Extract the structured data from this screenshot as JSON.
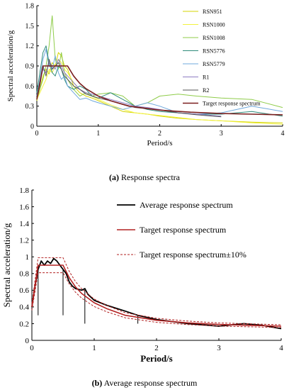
{
  "panels": [
    {
      "caption_tag": "(a)",
      "caption_text": " Response spectra",
      "chart_data": {
        "type": "line",
        "xlabel": "Period/s",
        "ylabel": "Spectral acceleration/g",
        "xlim": [
          0,
          4
        ],
        "ylim": [
          0,
          1.8
        ],
        "xticks": [
          0,
          1,
          2,
          3,
          4
        ],
        "yticks": [
          0,
          0.3,
          0.6,
          0.9,
          1.2,
          1.5,
          1.8
        ],
        "grid": false,
        "legend_position": "top-right",
        "series": [
          {
            "name": "RSN951",
            "color": "#d4d400",
            "x": [
              0,
              0.05,
              0.1,
              0.15,
              0.2,
              0.25,
              0.3,
              0.35,
              0.4,
              0.45,
              0.5,
              0.6,
              0.7,
              0.8,
              0.9,
              1,
              1.2,
              1.4,
              1.6,
              1.8,
              2,
              2.3,
              2.6,
              3,
              3.5,
              4
            ],
            "y": [
              0.38,
              0.55,
              0.75,
              0.85,
              0.78,
              0.95,
              0.9,
              1.1,
              1.05,
              0.9,
              0.85,
              0.6,
              0.5,
              0.45,
              0.42,
              0.38,
              0.3,
              0.22,
              0.2,
              0.18,
              0.15,
              0.12,
              0.1,
              0.08,
              0.06,
              0.05
            ]
          },
          {
            "name": "RSN1000",
            "color": "#f2f23c",
            "x": [
              0,
              0.05,
              0.1,
              0.15,
              0.2,
              0.25,
              0.3,
              0.35,
              0.4,
              0.45,
              0.5,
              0.6,
              0.7,
              0.8,
              0.9,
              1,
              1.2,
              1.4,
              1.6,
              1.8,
              2,
              2.3,
              2.6,
              3,
              3.5,
              4
            ],
            "y": [
              0.4,
              0.5,
              0.6,
              0.7,
              0.85,
              0.8,
              0.9,
              1.0,
              0.95,
              0.85,
              0.8,
              0.65,
              0.55,
              0.5,
              0.45,
              0.4,
              0.32,
              0.25,
              0.2,
              0.18,
              0.16,
              0.13,
              0.1,
              0.08,
              0.05,
              0.03
            ]
          },
          {
            "name": "RSN1008",
            "color": "#8fcc4a",
            "x": [
              0,
              0.05,
              0.1,
              0.15,
              0.2,
              0.25,
              0.3,
              0.35,
              0.4,
              0.45,
              0.5,
              0.6,
              0.7,
              0.8,
              0.9,
              1,
              1.2,
              1.4,
              1.6,
              1.8,
              2,
              2.3,
              2.6,
              3,
              3.5,
              4
            ],
            "y": [
              0.4,
              0.55,
              0.7,
              0.9,
              1.2,
              1.65,
              1.0,
              0.85,
              1.1,
              0.8,
              0.7,
              0.55,
              0.45,
              0.5,
              0.45,
              0.48,
              0.5,
              0.45,
              0.3,
              0.35,
              0.45,
              0.48,
              0.45,
              0.42,
              0.4,
              0.28
            ]
          },
          {
            "name": "RSN5776",
            "color": "#2e8b7a",
            "x": [
              0,
              0.05,
              0.1,
              0.15,
              0.2,
              0.25,
              0.3,
              0.35,
              0.4,
              0.45,
              0.5,
              0.6,
              0.7,
              0.8,
              0.9,
              1,
              1.2,
              1.4,
              1.6,
              1.8,
              2,
              2.3,
              2.6,
              3,
              3.5,
              4
            ],
            "y": [
              0.5,
              0.8,
              1.1,
              1.2,
              0.95,
              0.8,
              0.75,
              0.9,
              0.85,
              0.7,
              0.6,
              0.55,
              0.6,
              0.55,
              0.45,
              0.42,
              0.5,
              0.4,
              0.3,
              0.25,
              0.22,
              0.2,
              0.18,
              0.18,
              0.22,
              0.15
            ]
          },
          {
            "name": "RSN5779",
            "color": "#6fa8dc",
            "x": [
              0,
              0.05,
              0.1,
              0.15,
              0.2,
              0.25,
              0.3,
              0.35,
              0.4,
              0.45,
              0.5,
              0.6,
              0.7,
              0.8,
              0.9,
              1,
              1.2,
              1.4,
              1.6,
              1.8,
              2,
              2.3,
              2.6,
              3,
              3.5,
              4
            ],
            "y": [
              0.45,
              0.7,
              1.0,
              1.15,
              0.9,
              0.85,
              1.05,
              0.8,
              0.7,
              0.75,
              0.6,
              0.5,
              0.4,
              0.42,
              0.38,
              0.35,
              0.3,
              0.25,
              0.3,
              0.35,
              0.3,
              0.2,
              0.18,
              0.2,
              0.3,
              0.22
            ]
          },
          {
            "name": "R1",
            "color": "#8e7cc3",
            "x": [
              0,
              0.05,
              0.1,
              0.15,
              0.2,
              0.25,
              0.3,
              0.35,
              0.4,
              0.45,
              0.5,
              0.6,
              0.7,
              0.8,
              0.9,
              1,
              1.2,
              1.4,
              1.6,
              1.8,
              2,
              2.3,
              2.6,
              3
            ],
            "y": [
              0.4,
              0.65,
              0.85,
              0.8,
              0.95,
              0.9,
              0.85,
              1.0,
              0.9,
              0.8,
              0.75,
              0.65,
              0.55,
              0.5,
              0.48,
              0.45,
              0.4,
              0.35,
              0.3,
              0.28,
              0.25,
              0.2,
              0.18,
              0.15
            ]
          },
          {
            "name": "R2",
            "color": "#555555",
            "x": [
              0,
              0.05,
              0.1,
              0.15,
              0.2,
              0.25,
              0.3,
              0.35,
              0.4,
              0.45,
              0.5,
              0.6,
              0.7,
              0.8,
              0.9,
              1,
              1.2,
              1.4,
              1.6,
              1.8,
              2,
              2.3,
              2.6,
              3
            ],
            "y": [
              0.42,
              0.6,
              0.9,
              0.75,
              1.0,
              0.85,
              0.9,
              0.95,
              0.85,
              0.75,
              0.7,
              0.6,
              0.55,
              0.48,
              0.45,
              0.42,
              0.38,
              0.33,
              0.28,
              0.26,
              0.24,
              0.2,
              0.17,
              0.14
            ]
          },
          {
            "name": "Target response spectrum",
            "color": "#7b1f1f",
            "x": [
              0,
              0.1,
              0.2,
              0.3,
              0.4,
              0.5,
              0.6,
              0.7,
              0.8,
              1,
              1.2,
              1.5,
              2,
              2.5,
              3,
              3.5,
              4
            ],
            "y": [
              0.4,
              0.9,
              0.9,
              0.9,
              0.9,
              0.9,
              0.75,
              0.64,
              0.56,
              0.45,
              0.38,
              0.3,
              0.24,
              0.21,
              0.19,
              0.18,
              0.17
            ]
          }
        ]
      }
    },
    {
      "caption_tag": "(b)",
      "caption_text": " Average response spectrum",
      "chart_data": {
        "type": "line",
        "xlabel": "Period/s",
        "ylabel": "Spectral acceleration/g",
        "xlim": [
          0,
          4
        ],
        "ylim": [
          0,
          1.8
        ],
        "xticks": [
          0,
          1,
          2,
          3,
          4
        ],
        "yticks": [
          0,
          0.2,
          0.4,
          0.6,
          0.8,
          1,
          1.2,
          1.4,
          1.6,
          1.8
        ],
        "grid": false,
        "legend_position": "top-right",
        "series": [
          {
            "name": "Average response spectrum",
            "color": "#000000",
            "dash": "",
            "x": [
              0,
              0.05,
              0.1,
              0.15,
              0.2,
              0.25,
              0.3,
              0.35,
              0.4,
              0.45,
              0.5,
              0.55,
              0.6,
              0.65,
              0.7,
              0.8,
              0.85,
              0.9,
              1,
              1.2,
              1.5,
              1.7,
              2,
              2.5,
              3,
              3.4,
              3.7,
              4
            ],
            "y": [
              0.4,
              0.65,
              0.85,
              0.95,
              0.9,
              0.95,
              0.92,
              0.98,
              0.95,
              0.9,
              0.85,
              0.8,
              0.7,
              0.65,
              0.62,
              0.6,
              0.62,
              0.55,
              0.48,
              0.42,
              0.35,
              0.3,
              0.25,
              0.2,
              0.17,
              0.2,
              0.18,
              0.14
            ]
          },
          {
            "name": "Target response spectrum",
            "color": "#b22222",
            "dash": "",
            "x": [
              0,
              0.1,
              0.2,
              0.3,
              0.4,
              0.5,
              0.6,
              0.7,
              0.8,
              1,
              1.2,
              1.5,
              2,
              2.5,
              3,
              3.5,
              4
            ],
            "y": [
              0.4,
              0.9,
              0.9,
              0.9,
              0.9,
              0.9,
              0.75,
              0.64,
              0.56,
              0.45,
              0.38,
              0.3,
              0.24,
              0.21,
              0.19,
              0.18,
              0.17
            ]
          },
          {
            "name": "Target response spectrum±10%",
            "color": "#b22222",
            "dash": "3,2",
            "x": [
              0,
              0.1,
              0.2,
              0.3,
              0.4,
              0.5,
              0.6,
              0.7,
              0.8,
              1,
              1.2,
              1.5,
              2,
              2.5,
              3,
              3.5,
              4
            ],
            "y": [
              0.44,
              0.99,
              0.99,
              0.99,
              0.99,
              0.99,
              0.825,
              0.704,
              0.616,
              0.495,
              0.418,
              0.33,
              0.264,
              0.231,
              0.209,
              0.198,
              0.187
            ]
          },
          {
            "name": "",
            "color": "#b22222",
            "dash": "3,2",
            "x": [
              0,
              0.1,
              0.2,
              0.3,
              0.4,
              0.5,
              0.6,
              0.7,
              0.8,
              1,
              1.2,
              1.5,
              2,
              2.5,
              3,
              3.5,
              4
            ],
            "y": [
              0.36,
              0.81,
              0.81,
              0.81,
              0.81,
              0.81,
              0.675,
              0.576,
              0.504,
              0.405,
              0.342,
              0.27,
              0.216,
              0.189,
              0.171,
              0.162,
              0.153
            ]
          }
        ],
        "spikes": [
          {
            "x": 0.1,
            "y0": 0.3,
            "y1": 0.85
          },
          {
            "x": 0.5,
            "y0": 0.3,
            "y1": 0.85
          },
          {
            "x": 0.85,
            "y0": 0.2,
            "y1": 0.62
          },
          {
            "x": 1.7,
            "y0": 0.2,
            "y1": 0.3
          }
        ]
      }
    }
  ]
}
